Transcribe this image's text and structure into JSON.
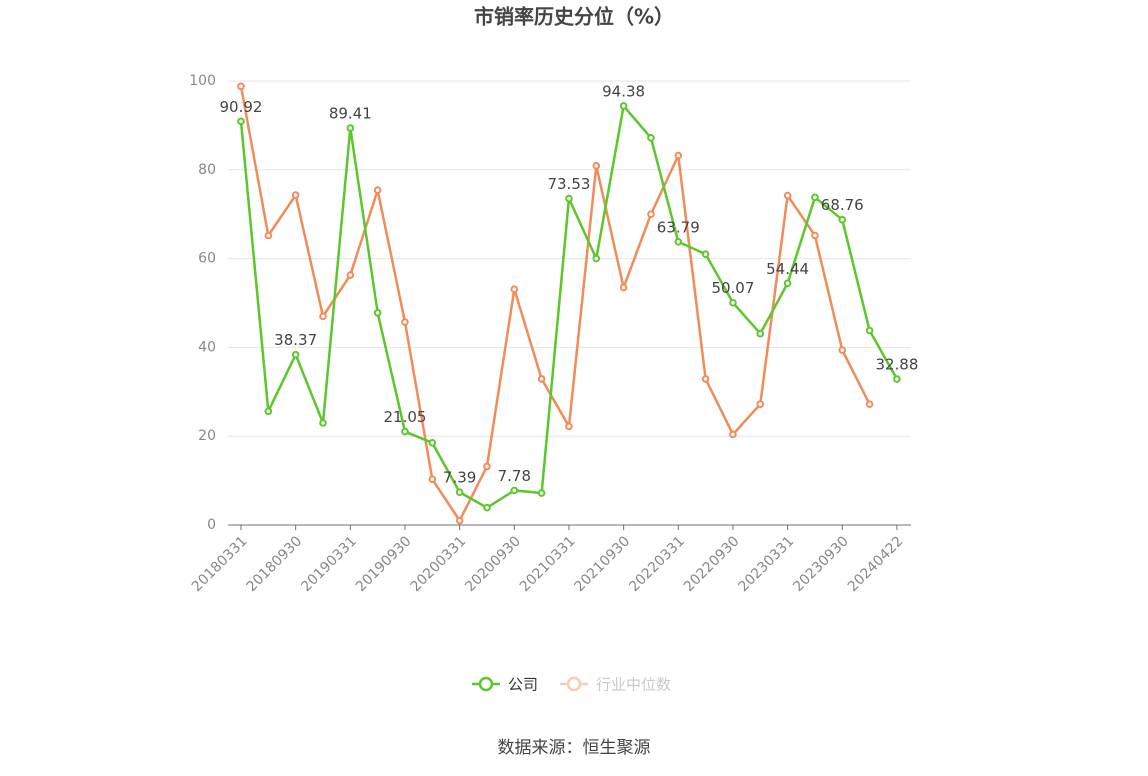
{
  "chart_data": {
    "type": "line",
    "title": "市销率历史分位（%）",
    "source": "数据来源：恒生聚源",
    "categories": [
      "20180331",
      null,
      "20180930",
      null,
      "20190331",
      null,
      "20190930",
      null,
      "20200331",
      null,
      "20200930",
      null,
      "20210331",
      null,
      "20210930",
      null,
      "20220331",
      null,
      "20220930",
      null,
      "20230331",
      null,
      "20230930",
      null,
      "20240422"
    ],
    "series": [
      {
        "name": "公司",
        "color": "#5cc72b",
        "values": [
          90.92,
          25.6,
          38.37,
          23,
          89.41,
          47.8,
          21.05,
          18.5,
          7.39,
          3.9,
          7.78,
          7.2,
          73.53,
          60,
          94.38,
          87.2,
          63.79,
          61,
          50.07,
          43.1,
          54.44,
          73.8,
          68.76,
          43.8,
          32.88
        ],
        "value_labels": [
          "90.92",
          null,
          "38.37",
          null,
          "89.41",
          null,
          "21.05",
          null,
          "7.39",
          null,
          "7.78",
          null,
          "73.53",
          null,
          "94.38",
          null,
          "63.79",
          null,
          "50.07",
          null,
          "54.44",
          null,
          "68.76",
          null,
          "32.88"
        ]
      },
      {
        "name": "行业中位数",
        "color": "#f28b5a",
        "values": [
          98.8,
          65.2,
          74.3,
          47,
          56.3,
          75.4,
          45.7,
          10.3,
          1.0,
          13.2,
          53.1,
          32.9,
          22.2,
          80.9,
          53.5,
          70,
          83.2,
          32.9,
          20.4,
          27.2,
          74.2,
          65.2,
          39.4,
          27.2,
          null
        ]
      }
    ],
    "ylim": [
      0,
      100
    ],
    "yticks": [
      0,
      20,
      40,
      60,
      80,
      100
    ],
    "grid": true
  }
}
